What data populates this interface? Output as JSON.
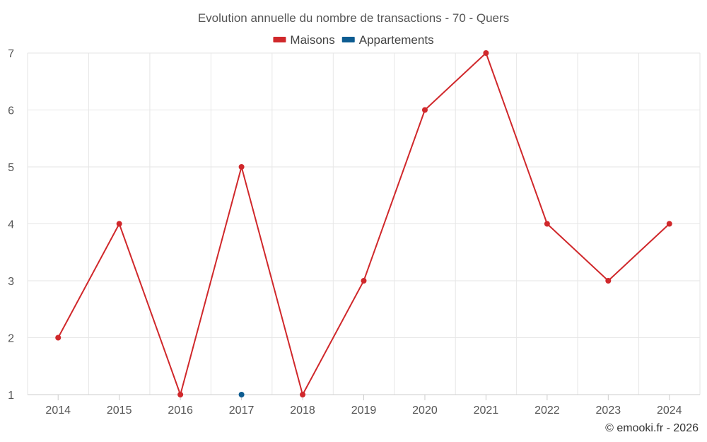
{
  "chart_data": {
    "type": "line",
    "title": "Evolution annuelle du nombre de transactions - 70 - Quers",
    "categories": [
      "2014",
      "2015",
      "2016",
      "2017",
      "2018",
      "2019",
      "2020",
      "2021",
      "2022",
      "2023",
      "2024"
    ],
    "y_ticks": [
      "1",
      "2",
      "3",
      "4",
      "5",
      "6",
      "7"
    ],
    "ylim": [
      1,
      7
    ],
    "grid": true,
    "legend_position": "top-center",
    "series": [
      {
        "name": "Maisons",
        "color": "#d0282b",
        "values": [
          2,
          4,
          1,
          5,
          1,
          3,
          6,
          7,
          4,
          3,
          4
        ]
      },
      {
        "name": "Appartements",
        "color": "#0d5c91",
        "values": [
          null,
          null,
          null,
          1,
          null,
          null,
          null,
          null,
          null,
          null,
          null
        ]
      }
    ]
  },
  "credit": "© emooki.fr - 2026"
}
